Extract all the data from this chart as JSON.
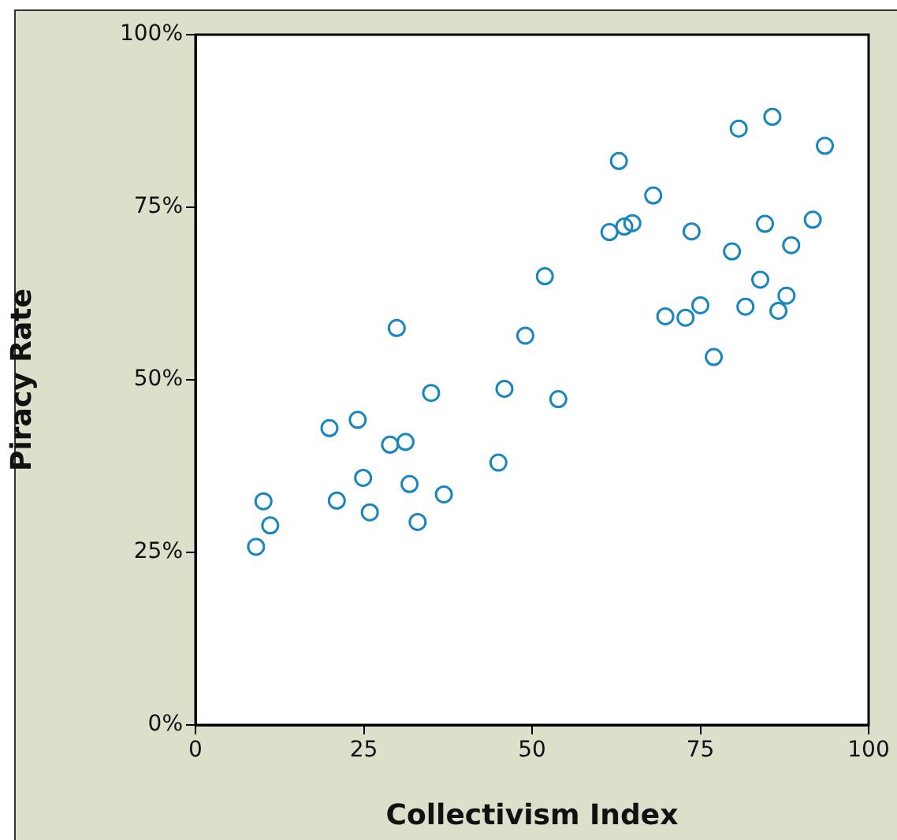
{
  "chart_data": {
    "type": "scatter",
    "xlabel": "Collectivism Index",
    "ylabel": "Piracy Rate",
    "xlim": [
      0,
      100
    ],
    "xticks": [
      0,
      25,
      50,
      75,
      100
    ],
    "ylim": [
      0,
      100
    ],
    "yticks": [
      {
        "value": 0,
        "label": "0%"
      },
      {
        "value": 25,
        "label": "25%"
      },
      {
        "value": 50,
        "label": "50%"
      },
      {
        "value": 75,
        "label": "75%"
      },
      {
        "value": 100,
        "label": "100%"
      }
    ],
    "grid": false,
    "legend": false,
    "marker": "circle",
    "series": [
      {
        "color": "#1a86c0",
        "x": [
          9.0,
          10.1,
          11.1,
          19.9,
          21.0,
          24.1,
          24.9,
          25.9,
          28.9,
          31.2,
          29.9,
          31.8,
          33.0,
          35.0,
          36.9,
          45.0,
          45.9,
          49.0,
          51.9,
          53.9,
          61.5,
          62.9,
          63.7,
          64.9,
          68.0,
          69.8,
          72.8,
          73.7,
          75.0,
          77.0,
          79.7,
          80.7,
          81.7,
          83.9,
          84.6,
          85.7,
          86.6,
          87.8,
          88.5,
          91.7,
          93.5
        ],
        "values": [
          25.8,
          32.4,
          28.9,
          43.0,
          32.5,
          44.2,
          35.8,
          30.8,
          40.6,
          41.0,
          57.5,
          34.9,
          29.4,
          48.1,
          33.4,
          38.0,
          48.7,
          56.4,
          65.0,
          47.2,
          71.4,
          81.7,
          72.2,
          72.7,
          76.7,
          59.2,
          59.0,
          71.5,
          60.8,
          53.3,
          68.6,
          86.4,
          60.6,
          64.5,
          72.6,
          88.1,
          60.0,
          62.2,
          69.5,
          73.2,
          83.9
        ]
      }
    ]
  }
}
